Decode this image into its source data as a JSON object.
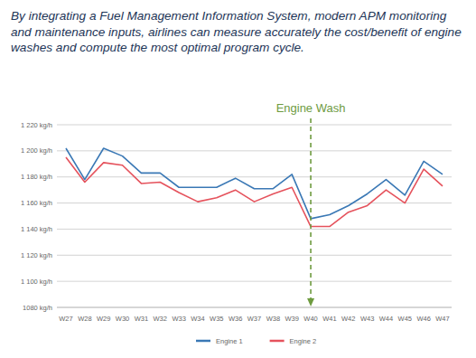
{
  "chart_data": {
    "type": "line",
    "title": "By integrating a Fuel Management Information System, modern APM monitoring and maintenance inputs, airlines can measure accurately the cost/benefit of engine washes and compute the most optimal program cycle.",
    "categories": [
      "W27",
      "W28",
      "W29",
      "W30",
      "W31",
      "W32",
      "W33",
      "W34",
      "W35",
      "W36",
      "W37",
      "W38",
      "W39",
      "W40",
      "W41",
      "W42",
      "W43",
      "W44",
      "W45",
      "W46",
      "W47"
    ],
    "series": [
      {
        "name": "Engine 1",
        "color": "#3a78b5",
        "values": [
          1202,
          1178,
          1202,
          1196,
          1183,
          1183,
          1172,
          1172,
          1172,
          1179,
          1171,
          1171,
          1182,
          1148,
          1151,
          1158,
          1167,
          1178,
          1166,
          1192,
          1182
        ]
      },
      {
        "name": "Engine 2",
        "color": "#e5525c",
        "values": [
          1195,
          1176,
          1191,
          1189,
          1175,
          1176,
          1168,
          1161,
          1164,
          1170,
          1161,
          1167,
          1172,
          1142,
          1142,
          1153,
          1158,
          1170,
          1160,
          1186,
          1173
        ]
      }
    ],
    "ylim": [
      1080,
      1220
    ],
    "yticks": [
      {
        "value": 1080,
        "label": "1080 kg/h"
      },
      {
        "value": 1100,
        "label": "1 100 kg/h"
      },
      {
        "value": 1120,
        "label": "1 120 kg/h"
      },
      {
        "value": 1140,
        "label": "1 140 kg/h"
      },
      {
        "value": 1160,
        "label": "1 160 kg/h"
      },
      {
        "value": 1180,
        "label": "1 180 kg/h"
      },
      {
        "value": 1200,
        "label": "1 200 kg/h"
      },
      {
        "value": 1220,
        "label": "1 220 kg/h"
      }
    ],
    "grid": true,
    "legend": "bottom",
    "annotations": [
      {
        "text": "Engine Wash",
        "x": "W40",
        "color": "#6e9b3f"
      }
    ]
  }
}
